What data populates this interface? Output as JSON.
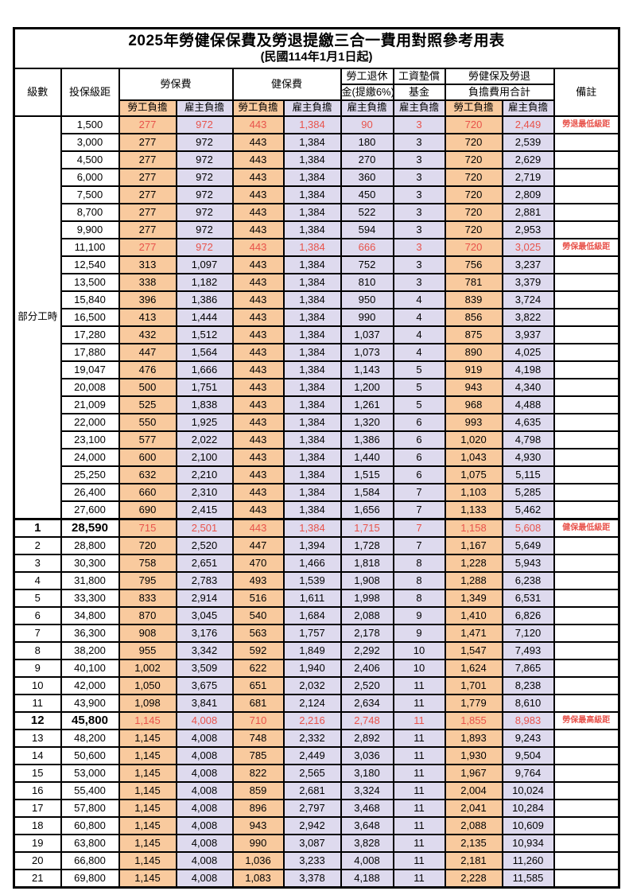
{
  "title": "2025年勞健保保費及勞退提繳三合一費用對照參考用表",
  "subtitle": "(民國114年1月1日起)",
  "colors": {
    "employee_col_bg": "#F9CA9E",
    "employer_col_bg": "#DEDAEE",
    "highlight_text": "#E8534B",
    "border": "#000000"
  },
  "header": {
    "level": "級數",
    "salary_bracket": "投保級距",
    "labor_insurance": "勞保費",
    "health_insurance": "健保費",
    "pension_line1": "勞工退休",
    "pension_line2": "金(提繳6%)",
    "wage_fund_line1": "工資墊償",
    "wage_fund_line2": "基金",
    "total_line1": "勞健保及勞退",
    "total_line2": "負擔費用合計",
    "remark": "備註",
    "employee_burden": "勞工負擔",
    "employer_burden": "雇主負擔"
  },
  "part_time": {
    "label": "部分工時",
    "rows": [
      {
        "salary": "1,500",
        "values": [
          "277",
          "972",
          "443",
          "1,384",
          "90",
          "3",
          "720",
          "2,449"
        ],
        "remark": "勞退最低級距",
        "red": true,
        "bold": false
      },
      {
        "salary": "3,000",
        "values": [
          "277",
          "972",
          "443",
          "1,384",
          "180",
          "3",
          "720",
          "2,539"
        ],
        "remark": "",
        "red": false,
        "bold": false
      },
      {
        "salary": "4,500",
        "values": [
          "277",
          "972",
          "443",
          "1,384",
          "270",
          "3",
          "720",
          "2,629"
        ],
        "remark": "",
        "red": false,
        "bold": false
      },
      {
        "salary": "6,000",
        "values": [
          "277",
          "972",
          "443",
          "1,384",
          "360",
          "3",
          "720",
          "2,719"
        ],
        "remark": "",
        "red": false,
        "bold": false
      },
      {
        "salary": "7,500",
        "values": [
          "277",
          "972",
          "443",
          "1,384",
          "450",
          "3",
          "720",
          "2,809"
        ],
        "remark": "",
        "red": false,
        "bold": false
      },
      {
        "salary": "8,700",
        "values": [
          "277",
          "972",
          "443",
          "1,384",
          "522",
          "3",
          "720",
          "2,881"
        ],
        "remark": "",
        "red": false,
        "bold": false
      },
      {
        "salary": "9,900",
        "values": [
          "277",
          "972",
          "443",
          "1,384",
          "594",
          "3",
          "720",
          "2,953"
        ],
        "remark": "",
        "red": false,
        "bold": false
      },
      {
        "salary": "11,100",
        "values": [
          "277",
          "972",
          "443",
          "1,384",
          "666",
          "3",
          "720",
          "3,025"
        ],
        "remark": "勞保最低級距",
        "red": true,
        "bold": false
      },
      {
        "salary": "12,540",
        "values": [
          "313",
          "1,097",
          "443",
          "1,384",
          "752",
          "3",
          "756",
          "3,237"
        ],
        "remark": "",
        "red": false,
        "bold": false
      },
      {
        "salary": "13,500",
        "values": [
          "338",
          "1,182",
          "443",
          "1,384",
          "810",
          "3",
          "781",
          "3,379"
        ],
        "remark": "",
        "red": false,
        "bold": false
      },
      {
        "salary": "15,840",
        "values": [
          "396",
          "1,386",
          "443",
          "1,384",
          "950",
          "4",
          "839",
          "3,724"
        ],
        "remark": "",
        "red": false,
        "bold": false
      },
      {
        "salary": "16,500",
        "values": [
          "413",
          "1,444",
          "443",
          "1,384",
          "990",
          "4",
          "856",
          "3,822"
        ],
        "remark": "",
        "red": false,
        "bold": false
      },
      {
        "salary": "17,280",
        "values": [
          "432",
          "1,512",
          "443",
          "1,384",
          "1,037",
          "4",
          "875",
          "3,937"
        ],
        "remark": "",
        "red": false,
        "bold": false
      },
      {
        "salary": "17,880",
        "values": [
          "447",
          "1,564",
          "443",
          "1,384",
          "1,073",
          "4",
          "890",
          "4,025"
        ],
        "remark": "",
        "red": false,
        "bold": false
      },
      {
        "salary": "19,047",
        "values": [
          "476",
          "1,666",
          "443",
          "1,384",
          "1,143",
          "5",
          "919",
          "4,198"
        ],
        "remark": "",
        "red": false,
        "bold": false
      },
      {
        "salary": "20,008",
        "values": [
          "500",
          "1,751",
          "443",
          "1,384",
          "1,200",
          "5",
          "943",
          "4,340"
        ],
        "remark": "",
        "red": false,
        "bold": false
      },
      {
        "salary": "21,009",
        "values": [
          "525",
          "1,838",
          "443",
          "1,384",
          "1,261",
          "5",
          "968",
          "4,488"
        ],
        "remark": "",
        "red": false,
        "bold": false
      },
      {
        "salary": "22,000",
        "values": [
          "550",
          "1,925",
          "443",
          "1,384",
          "1,320",
          "6",
          "993",
          "4,635"
        ],
        "remark": "",
        "red": false,
        "bold": false
      },
      {
        "salary": "23,100",
        "values": [
          "577",
          "2,022",
          "443",
          "1,384",
          "1,386",
          "6",
          "1,020",
          "4,798"
        ],
        "remark": "",
        "red": false,
        "bold": false
      },
      {
        "salary": "24,000",
        "values": [
          "600",
          "2,100",
          "443",
          "1,384",
          "1,440",
          "6",
          "1,043",
          "4,930"
        ],
        "remark": "",
        "red": false,
        "bold": false
      },
      {
        "salary": "25,250",
        "values": [
          "632",
          "2,210",
          "443",
          "1,384",
          "1,515",
          "6",
          "1,075",
          "5,115"
        ],
        "remark": "",
        "red": false,
        "bold": false
      },
      {
        "salary": "26,400",
        "values": [
          "660",
          "2,310",
          "443",
          "1,384",
          "1,584",
          "7",
          "1,103",
          "5,285"
        ],
        "remark": "",
        "red": false,
        "bold": false
      },
      {
        "salary": "27,600",
        "values": [
          "690",
          "2,415",
          "443",
          "1,384",
          "1,656",
          "7",
          "1,133",
          "5,462"
        ],
        "remark": "",
        "red": false,
        "bold": false
      }
    ]
  },
  "numbered_rows": [
    {
      "level": "1",
      "salary": "28,590",
      "values": [
        "715",
        "2,501",
        "443",
        "1,384",
        "1,715",
        "7",
        "1,158",
        "5,608"
      ],
      "remark": "健保最低級距",
      "red": true,
      "bold": true
    },
    {
      "level": "2",
      "salary": "28,800",
      "values": [
        "720",
        "2,520",
        "447",
        "1,394",
        "1,728",
        "7",
        "1,167",
        "5,649"
      ],
      "remark": "",
      "red": false,
      "bold": false
    },
    {
      "level": "3",
      "salary": "30,300",
      "values": [
        "758",
        "2,651",
        "470",
        "1,466",
        "1,818",
        "8",
        "1,228",
        "5,943"
      ],
      "remark": "",
      "red": false,
      "bold": false
    },
    {
      "level": "4",
      "salary": "31,800",
      "values": [
        "795",
        "2,783",
        "493",
        "1,539",
        "1,908",
        "8",
        "1,288",
        "6,238"
      ],
      "remark": "",
      "red": false,
      "bold": false
    },
    {
      "level": "5",
      "salary": "33,300",
      "values": [
        "833",
        "2,914",
        "516",
        "1,611",
        "1,998",
        "8",
        "1,349",
        "6,531"
      ],
      "remark": "",
      "red": false,
      "bold": false
    },
    {
      "level": "6",
      "salary": "34,800",
      "values": [
        "870",
        "3,045",
        "540",
        "1,684",
        "2,088",
        "9",
        "1,410",
        "6,826"
      ],
      "remark": "",
      "red": false,
      "bold": false
    },
    {
      "level": "7",
      "salary": "36,300",
      "values": [
        "908",
        "3,176",
        "563",
        "1,757",
        "2,178",
        "9",
        "1,471",
        "7,120"
      ],
      "remark": "",
      "red": false,
      "bold": false
    },
    {
      "level": "8",
      "salary": "38,200",
      "values": [
        "955",
        "3,342",
        "592",
        "1,849",
        "2,292",
        "10",
        "1,547",
        "7,493"
      ],
      "remark": "",
      "red": false,
      "bold": false
    },
    {
      "level": "9",
      "salary": "40,100",
      "values": [
        "1,002",
        "3,509",
        "622",
        "1,940",
        "2,406",
        "10",
        "1,624",
        "7,865"
      ],
      "remark": "",
      "red": false,
      "bold": false
    },
    {
      "level": "10",
      "salary": "42,000",
      "values": [
        "1,050",
        "3,675",
        "651",
        "2,032",
        "2,520",
        "11",
        "1,701",
        "8,238"
      ],
      "remark": "",
      "red": false,
      "bold": false
    },
    {
      "level": "11",
      "salary": "43,900",
      "values": [
        "1,098",
        "3,841",
        "681",
        "2,124",
        "2,634",
        "11",
        "1,779",
        "8,610"
      ],
      "remark": "",
      "red": false,
      "bold": false
    },
    {
      "level": "12",
      "salary": "45,800",
      "values": [
        "1,145",
        "4,008",
        "710",
        "2,216",
        "2,748",
        "11",
        "1,855",
        "8,983"
      ],
      "remark": "勞保最高級距",
      "red": true,
      "bold": true
    },
    {
      "level": "13",
      "salary": "48,200",
      "values": [
        "1,145",
        "4,008",
        "748",
        "2,332",
        "2,892",
        "11",
        "1,893",
        "9,243"
      ],
      "remark": "",
      "red": false,
      "bold": false
    },
    {
      "level": "14",
      "salary": "50,600",
      "values": [
        "1,145",
        "4,008",
        "785",
        "2,449",
        "3,036",
        "11",
        "1,930",
        "9,504"
      ],
      "remark": "",
      "red": false,
      "bold": false
    },
    {
      "level": "15",
      "salary": "53,000",
      "values": [
        "1,145",
        "4,008",
        "822",
        "2,565",
        "3,180",
        "11",
        "1,967",
        "9,764"
      ],
      "remark": "",
      "red": false,
      "bold": false
    },
    {
      "level": "16",
      "salary": "55,400",
      "values": [
        "1,145",
        "4,008",
        "859",
        "2,681",
        "3,324",
        "11",
        "2,004",
        "10,024"
      ],
      "remark": "",
      "red": false,
      "bold": false
    },
    {
      "level": "17",
      "salary": "57,800",
      "values": [
        "1,145",
        "4,008",
        "896",
        "2,797",
        "3,468",
        "11",
        "2,041",
        "10,284"
      ],
      "remark": "",
      "red": false,
      "bold": false
    },
    {
      "level": "18",
      "salary": "60,800",
      "values": [
        "1,145",
        "4,008",
        "943",
        "2,942",
        "3,648",
        "11",
        "2,088",
        "10,609"
      ],
      "remark": "",
      "red": false,
      "bold": false
    },
    {
      "level": "19",
      "salary": "63,800",
      "values": [
        "1,145",
        "4,008",
        "990",
        "3,087",
        "3,828",
        "11",
        "2,135",
        "10,934"
      ],
      "remark": "",
      "red": false,
      "bold": false
    },
    {
      "level": "20",
      "salary": "66,800",
      "values": [
        "1,145",
        "4,008",
        "1,036",
        "3,233",
        "4,008",
        "11",
        "2,181",
        "11,260"
      ],
      "remark": "",
      "red": false,
      "bold": false
    },
    {
      "level": "21",
      "salary": "69,800",
      "values": [
        "1,145",
        "4,008",
        "1,083",
        "3,378",
        "4,188",
        "11",
        "2,228",
        "11,585"
      ],
      "remark": "",
      "red": false,
      "bold": false
    }
  ],
  "value_column_keys": [
    "labor_employee",
    "labor_employer",
    "health_employee",
    "health_employer",
    "pension_employer",
    "wagefund_employer",
    "total_employee",
    "total_employer"
  ]
}
